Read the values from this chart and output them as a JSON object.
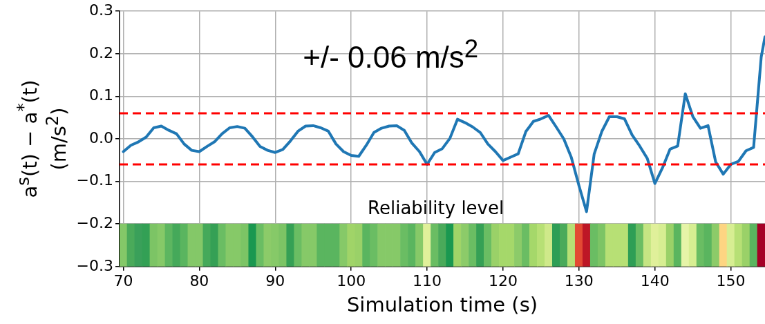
{
  "chart_data": {
    "type": "line",
    "xlabel": "Simulation time (s)",
    "ylabel": "a$^{s}$(t) − a$^{*}$(t) (m/s$^{2}$)",
    "xlim": [
      69.5,
      154.5
    ],
    "xticks": [
      70,
      80,
      90,
      100,
      110,
      120,
      130,
      140,
      150
    ],
    "ylim": [
      -0.3,
      0.3
    ],
    "yticks": [
      -0.3,
      -0.2,
      -0.1,
      {
        "value": 0,
        "label": "0.0"
      },
      0.1,
      0.2,
      0.3
    ],
    "grid": true,
    "legend": false,
    "marker": "none",
    "line_style": "solid",
    "series": [
      {
        "color": "#1f77b4",
        "x": [
          70,
          71,
          72,
          73,
          74,
          75,
          76,
          77,
          78,
          79,
          80,
          81,
          82,
          83,
          84,
          85,
          86,
          87,
          88,
          89,
          90,
          91,
          92,
          93,
          94,
          95,
          96,
          97,
          98,
          99,
          100,
          101,
          102,
          103,
          104,
          105,
          106,
          107,
          108,
          109,
          110,
          111,
          112,
          113,
          114,
          115,
          116,
          117,
          118,
          119,
          120,
          121,
          122,
          123,
          124,
          125,
          126,
          127,
          128,
          129,
          130,
          131,
          132,
          133,
          134,
          135,
          136,
          137,
          138,
          139,
          140,
          141,
          142,
          143,
          144,
          145,
          146,
          147,
          148,
          149,
          150,
          151,
          152,
          153,
          154,
          154.5
        ],
        "values": [
          -0.03,
          -0.015,
          -0.007,
          0.004,
          0.026,
          0.03,
          0.02,
          0.012,
          -0.012,
          -0.027,
          -0.03,
          -0.018,
          -0.007,
          0.012,
          0.026,
          0.029,
          0.025,
          0.005,
          -0.018,
          -0.027,
          -0.032,
          -0.025,
          -0.005,
          0.018,
          0.03,
          0.031,
          0.026,
          0.018,
          -0.012,
          -0.03,
          -0.039,
          -0.041,
          -0.015,
          0.015,
          0.025,
          0.03,
          0.031,
          0.02,
          -0.01,
          -0.03,
          -0.06,
          -0.032,
          -0.023,
          0.001,
          0.046,
          0.038,
          0.028,
          0.015,
          -0.012,
          -0.03,
          -0.051,
          -0.043,
          -0.035,
          0.017,
          0.041,
          0.047,
          0.055,
          0.028,
          0.0,
          -0.044,
          -0.11,
          -0.171,
          -0.036,
          0.017,
          0.052,
          0.052,
          0.047,
          0.009,
          -0.017,
          -0.046,
          -0.105,
          -0.068,
          -0.024,
          -0.017,
          0.106,
          0.052,
          0.025,
          0.031,
          -0.054,
          -0.083,
          -0.06,
          -0.053,
          -0.028,
          -0.02,
          0.192,
          0.24
        ]
      },
      {
        "type": "bar",
        "x": [
          70,
          71,
          72,
          73,
          74,
          75,
          76,
          77,
          78,
          79,
          80,
          81,
          82,
          83,
          84,
          85,
          86,
          87,
          88,
          89,
          90,
          91,
          92,
          93,
          94,
          95,
          96,
          97,
          98,
          99,
          100,
          101,
          102,
          103,
          104,
          105,
          106,
          107,
          108,
          109,
          110,
          111,
          112,
          113,
          114,
          115,
          116,
          117,
          118,
          119,
          120,
          121,
          122,
          123,
          124,
          125,
          126,
          127,
          128,
          129,
          130,
          131,
          132,
          133,
          134,
          135,
          136,
          137,
          138,
          139,
          140,
          141,
          142,
          143,
          144,
          145,
          146,
          147,
          148,
          149,
          150,
          151,
          152,
          153,
          154
        ],
        "values": [
          0.1,
          0.1,
          0.1,
          0.1,
          0.1,
          0.1,
          0.1,
          0.1,
          0.1,
          0.1,
          0.1,
          0.1,
          0.1,
          0.1,
          0.1,
          0.1,
          0.1,
          0.1,
          0.1,
          0.1,
          0.1,
          0.1,
          0.1,
          0.1,
          0.1,
          0.1,
          0.1,
          0.1,
          0.1,
          0.1,
          0.1,
          0.1,
          0.1,
          0.1,
          0.1,
          0.1,
          0.1,
          0.1,
          0.1,
          0.1,
          0.1,
          0.1,
          0.1,
          0.1,
          0.1,
          0.1,
          0.1,
          0.1,
          0.1,
          0.1,
          0.1,
          0.1,
          0.1,
          0.1,
          0.1,
          0.1,
          0.1,
          0.1,
          0.1,
          0.1,
          0.1,
          0.1,
          0.1,
          0.1,
          0.1,
          0.1,
          0.1,
          0.1,
          0.1,
          0.1,
          0.1,
          0.1,
          0.1,
          0.1,
          0.1,
          0.1,
          0.1,
          0.1,
          0.1,
          0.1,
          0.1,
          0.1,
          0.1,
          0.1,
          0.1
        ],
        "base": [
          -0.3,
          -0.3,
          -0.3,
          -0.3,
          -0.3,
          -0.3,
          -0.3,
          -0.3,
          -0.3,
          -0.3,
          -0.3,
          -0.3,
          -0.3,
          -0.3,
          -0.3,
          -0.3,
          -0.3,
          -0.3,
          -0.3,
          -0.3,
          -0.3,
          -0.3,
          -0.3,
          -0.3,
          -0.3,
          -0.3,
          -0.3,
          -0.3,
          -0.3,
          -0.3,
          -0.3,
          -0.3,
          -0.3,
          -0.3,
          -0.3,
          -0.3,
          -0.3,
          -0.3,
          -0.3,
          -0.3,
          -0.3,
          -0.3,
          -0.3,
          -0.3,
          -0.3,
          -0.3,
          -0.3,
          -0.3,
          -0.3,
          -0.3,
          -0.3,
          -0.3,
          -0.3,
          -0.3,
          -0.3,
          -0.3,
          -0.3,
          -0.3,
          -0.3,
          -0.3,
          -0.3,
          -0.3,
          -0.3,
          -0.3,
          -0.3,
          -0.3,
          -0.3,
          -0.3,
          -0.3,
          -0.3,
          -0.3,
          -0.3,
          -0.3,
          -0.3,
          -0.3,
          -0.3,
          -0.3,
          -0.3,
          -0.3,
          -0.3,
          -0.3,
          -0.3,
          -0.3,
          -0.3,
          -0.3
        ],
        "colors": [
          "#84c868",
          "#4aaa5a",
          "#3aa05a",
          "#33a055",
          "#7cc465",
          "#86c968",
          "#5db660",
          "#45a95a",
          "#5ab55f",
          "#84c868",
          "#84c868",
          "#45a95a",
          "#35a055",
          "#6abd63",
          "#86c968",
          "#86c968",
          "#7cc465",
          "#1a9850",
          "#6abd63",
          "#8ccb69",
          "#86c968",
          "#7cc465",
          "#35a055",
          "#6abd63",
          "#86c968",
          "#86c968",
          "#5ab55f",
          "#5ab55f",
          "#5ab55f",
          "#86c968",
          "#a0d468",
          "#9ad168",
          "#5ab55f",
          "#6abd63",
          "#86c968",
          "#86c968",
          "#86c968",
          "#6abd63",
          "#5ab55f",
          "#86c968",
          "#e0f09a",
          "#6abd63",
          "#4aaa5a",
          "#1a9850",
          "#a0d468",
          "#8ccb69",
          "#6abd63",
          "#35a055",
          "#6abd63",
          "#9ad168",
          "#a5d86a",
          "#a5d86a",
          "#8ccb69",
          "#6abd63",
          "#a5d86a",
          "#b7e075",
          "#cfe98a",
          "#2e9e55",
          "#4aaa5a",
          "#b7e075",
          "#e34a33",
          "#bd1726",
          "#6abd63",
          "#7cc465",
          "#b7e075",
          "#b7e075",
          "#b7e075",
          "#2e9e55",
          "#6abd63",
          "#c5e583",
          "#e0f09a",
          "#d7ee92",
          "#9ad168",
          "#5ab55f",
          "#e6f4a8",
          "#d7ee92",
          "#6abd63",
          "#5ab55f",
          "#8ccb69",
          "#fdd582",
          "#d7ee92",
          "#b7e075",
          "#9ad168",
          "#5ab55f",
          "#a50026"
        ]
      }
    ],
    "ref_lines": [
      {
        "axis": "y",
        "value": 0.06,
        "color": "#ff0000",
        "line_style": "dashed"
      },
      {
        "axis": "y",
        "value": -0.06,
        "color": "#ff0000",
        "line_style": "dashed"
      }
    ],
    "annotations": [
      "+/- 0.06 m/s$^{2}$",
      "Reliability level"
    ]
  }
}
